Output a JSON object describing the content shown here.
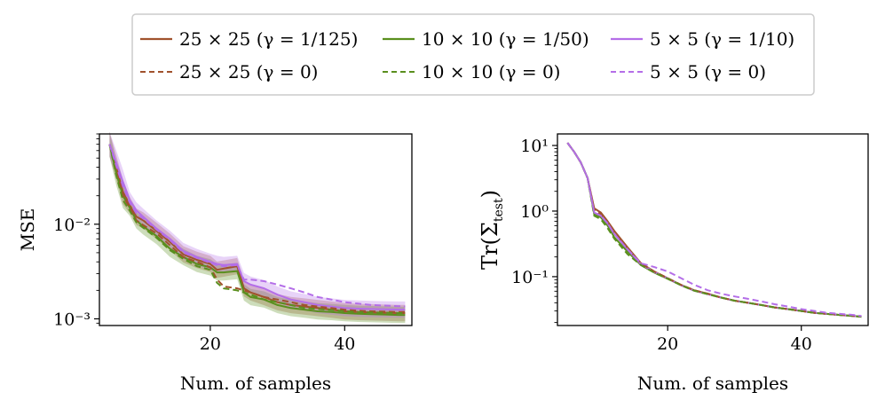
{
  "legend": {
    "entries": [
      {
        "label": "25 × 25  (γ = 1/125)",
        "color": "#a0522d",
        "style": "solid"
      },
      {
        "label": "10 × 10  (γ = 1/50)",
        "color": "#5a8f1e",
        "style": "solid"
      },
      {
        "label": "5 × 5  (γ = 1/10)",
        "color": "#b46ee8",
        "style": "solid"
      },
      {
        "label": "25 × 25  (γ = 0)",
        "color": "#a0522d",
        "style": "dashed"
      },
      {
        "label": "10 × 10  (γ = 0)",
        "color": "#5a8f1e",
        "style": "dashed"
      },
      {
        "label": "5 × 5  (γ = 0)",
        "color": "#b46ee8",
        "style": "dashed"
      }
    ]
  },
  "chart_data": [
    {
      "type": "line",
      "name": "mse",
      "xlabel": "Num. of samples",
      "ylabel": "MSE",
      "yscale": "log",
      "xlim": [
        3.5,
        50
      ],
      "ylim": [
        0.00085,
        0.09
      ],
      "xticks": [
        {
          "value": 20,
          "label": "20"
        },
        {
          "value": 40,
          "label": "40"
        }
      ],
      "yticks": [
        {
          "value": 0.01,
          "label": "10⁻²"
        },
        {
          "value": 0.001,
          "label": "10⁻³"
        }
      ],
      "x": [
        5,
        6,
        7,
        8,
        9,
        10,
        12,
        14,
        16,
        18,
        20,
        21,
        22,
        24,
        25,
        26,
        28,
        30,
        32,
        34,
        36,
        38,
        40,
        42,
        44,
        46,
        48,
        49
      ],
      "series": [
        {
          "name": "25 × 25 (γ = 1/125)",
          "color": "#a0522d",
          "dash": false,
          "values": [
            0.07,
            0.04,
            0.022,
            0.016,
            0.012,
            0.011,
            0.0085,
            0.0065,
            0.0048,
            0.0042,
            0.0038,
            0.0033,
            0.0034,
            0.0036,
            0.0021,
            0.0019,
            0.0017,
            0.0015,
            0.0014,
            0.00135,
            0.0013,
            0.00125,
            0.0012,
            0.00118,
            0.00117,
            0.00116,
            0.00115,
            0.00115
          ]
        },
        {
          "name": "10 × 10 (γ = 1/50)",
          "color": "#5a8f1e",
          "dash": false,
          "values": [
            0.07,
            0.035,
            0.02,
            0.015,
            0.011,
            0.0095,
            0.0075,
            0.0055,
            0.0045,
            0.0038,
            0.0035,
            0.0031,
            0.0031,
            0.0032,
            0.0019,
            0.0017,
            0.0016,
            0.0014,
            0.0013,
            0.00125,
            0.0012,
            0.00118,
            0.00115,
            0.00113,
            0.00112,
            0.00111,
            0.0011,
            0.0011
          ]
        },
        {
          "name": "5 × 5 (γ = 1/10)",
          "color": "#b46ee8",
          "dash": false,
          "values": [
            0.07,
            0.045,
            0.028,
            0.018,
            0.014,
            0.012,
            0.009,
            0.007,
            0.0052,
            0.0045,
            0.004,
            0.0038,
            0.0037,
            0.0038,
            0.0025,
            0.0023,
            0.0021,
            0.0018,
            0.0016,
            0.0015,
            0.0014,
            0.00135,
            0.0013,
            0.00128,
            0.00127,
            0.00126,
            0.00125,
            0.00125
          ]
        },
        {
          "name": "25 × 25 (γ = 0)",
          "color": "#a0522d",
          "dash": true,
          "values": [
            0.07,
            0.038,
            0.02,
            0.015,
            0.011,
            0.0098,
            0.008,
            0.006,
            0.0045,
            0.004,
            0.0035,
            0.0026,
            0.0022,
            0.0021,
            0.002,
            0.0019,
            0.0017,
            0.0016,
            0.0015,
            0.0014,
            0.00135,
            0.0013,
            0.00125,
            0.00122,
            0.0012,
            0.00119,
            0.00118,
            0.00118
          ]
        },
        {
          "name": "10 × 10 (γ = 0)",
          "color": "#5a8f1e",
          "dash": true,
          "values": [
            0.07,
            0.033,
            0.018,
            0.014,
            0.0105,
            0.0092,
            0.0072,
            0.0053,
            0.0043,
            0.0036,
            0.0033,
            0.0024,
            0.0021,
            0.002,
            0.0019,
            0.0018,
            0.0016,
            0.0015,
            0.0014,
            0.0013,
            0.00127,
            0.00124,
            0.0012,
            0.00118,
            0.00117,
            0.00116,
            0.00115,
            0.00115
          ]
        },
        {
          "name": "5 × 5 (γ = 0)",
          "color": "#b46ee8",
          "dash": true,
          "values": [
            0.07,
            0.042,
            0.025,
            0.017,
            0.013,
            0.0115,
            0.0088,
            0.0068,
            0.005,
            0.0044,
            0.0039,
            0.0037,
            0.0036,
            0.0037,
            0.0026,
            0.0026,
            0.0025,
            0.0023,
            0.0021,
            0.0019,
            0.0017,
            0.0016,
            0.0015,
            0.00145,
            0.0014,
            0.00138,
            0.00136,
            0.00135
          ]
        }
      ]
    },
    {
      "type": "line",
      "name": "trace",
      "xlabel": "Num. of samples",
      "ylabel": "Tr(Σ_test)",
      "ylabel_main": "Tr(Σ",
      "ylabel_sub": "test",
      "ylabel_close": ")",
      "yscale": "log",
      "xlim": [
        3.5,
        50
      ],
      "ylim": [
        0.018,
        15
      ],
      "xticks": [
        {
          "value": 20,
          "label": "20"
        },
        {
          "value": 40,
          "label": "40"
        }
      ],
      "yticks": [
        {
          "value": 10,
          "label": "10¹"
        },
        {
          "value": 1,
          "label": "10⁰"
        },
        {
          "value": 0.1,
          "label": "10⁻¹"
        }
      ],
      "x": [
        5,
        6,
        7,
        8,
        9,
        10,
        11,
        12,
        14,
        16,
        18,
        20,
        22,
        24,
        26,
        28,
        30,
        32,
        34,
        36,
        38,
        40,
        42,
        44,
        46,
        48,
        49
      ],
      "series": [
        {
          "name": "25 × 25 (γ = 1/125)",
          "color": "#a0522d",
          "dash": false,
          "values": [
            11,
            8,
            5.5,
            3.2,
            1.1,
            0.95,
            0.7,
            0.5,
            0.28,
            0.16,
            0.12,
            0.095,
            0.075,
            0.062,
            0.055,
            0.048,
            0.043,
            0.04,
            0.037,
            0.034,
            0.032,
            0.03,
            0.028,
            0.027,
            0.026,
            0.025,
            0.0245
          ]
        },
        {
          "name": "10 × 10 (γ = 1/50)",
          "color": "#5a8f1e",
          "dash": false,
          "values": [
            11,
            8,
            5.5,
            3.2,
            0.9,
            0.8,
            0.6,
            0.4,
            0.24,
            0.15,
            0.115,
            0.093,
            0.074,
            0.061,
            0.054,
            0.048,
            0.043,
            0.04,
            0.037,
            0.034,
            0.032,
            0.03,
            0.028,
            0.027,
            0.026,
            0.025,
            0.0245
          ]
        },
        {
          "name": "5 × 5 (γ = 1/10)",
          "color": "#b46ee8",
          "dash": false,
          "values": [
            11,
            8,
            5.5,
            3.2,
            0.95,
            0.85,
            0.65,
            0.45,
            0.26,
            0.155,
            0.118,
            0.094,
            0.074,
            0.061,
            0.054,
            0.048,
            0.043,
            0.04,
            0.037,
            0.034,
            0.032,
            0.03,
            0.028,
            0.027,
            0.026,
            0.025,
            0.0245
          ]
        },
        {
          "name": "25 × 25 (γ = 0)",
          "color": "#a0522d",
          "dash": true,
          "values": [
            11,
            8,
            5.5,
            3.2,
            1.05,
            0.9,
            0.68,
            0.48,
            0.27,
            0.16,
            0.12,
            0.095,
            0.075,
            0.062,
            0.055,
            0.048,
            0.043,
            0.04,
            0.037,
            0.034,
            0.032,
            0.03,
            0.028,
            0.027,
            0.026,
            0.025,
            0.0245
          ]
        },
        {
          "name": "10 × 10 (γ = 0)",
          "color": "#5a8f1e",
          "dash": true,
          "values": [
            11,
            8,
            5.5,
            3.2,
            0.85,
            0.75,
            0.55,
            0.38,
            0.22,
            0.15,
            0.115,
            0.093,
            0.074,
            0.061,
            0.054,
            0.048,
            0.043,
            0.04,
            0.037,
            0.034,
            0.032,
            0.03,
            0.028,
            0.027,
            0.026,
            0.025,
            0.0245
          ]
        },
        {
          "name": "5 × 5 (γ = 0)",
          "color": "#b46ee8",
          "dash": true,
          "values": [
            11,
            8,
            5.5,
            3.2,
            0.95,
            0.85,
            0.65,
            0.45,
            0.26,
            0.16,
            0.14,
            0.12,
            0.095,
            0.075,
            0.062,
            0.055,
            0.05,
            0.046,
            0.042,
            0.038,
            0.035,
            0.032,
            0.03,
            0.028,
            0.027,
            0.026,
            0.025
          ]
        }
      ]
    }
  ]
}
